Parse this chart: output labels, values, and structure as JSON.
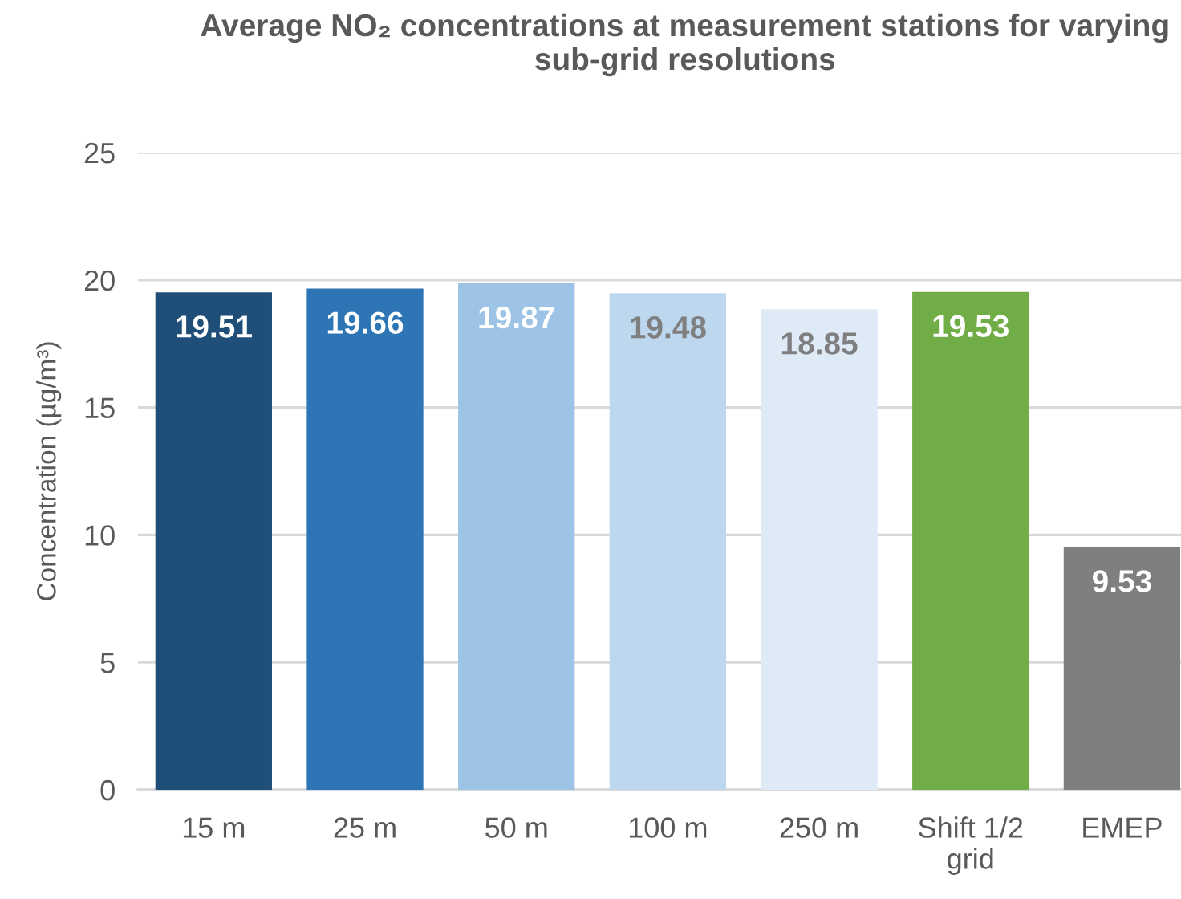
{
  "chart_data": {
    "type": "bar",
    "title": "Average NO₂ concentrations at measurement stations for varying sub-grid resolutions",
    "ylabel": "Concentration (µg/m³)",
    "categories": [
      "15 m",
      "25 m",
      "50 m",
      "100 m",
      "250 m",
      "Shift 1/2 grid",
      "EMEP"
    ],
    "values": [
      19.51,
      19.66,
      19.87,
      19.48,
      18.85,
      19.53,
      9.53
    ],
    "colors": [
      "#1f4e79",
      "#2e75b6",
      "#9dc3e6",
      "#bdd7ee",
      "#deebf7",
      "#70ad47",
      "#7f7f7f"
    ],
    "ylim": [
      0,
      25
    ],
    "yticks": [
      0,
      5,
      10,
      15,
      20,
      25
    ],
    "grid": "y",
    "data_labels": true
  }
}
